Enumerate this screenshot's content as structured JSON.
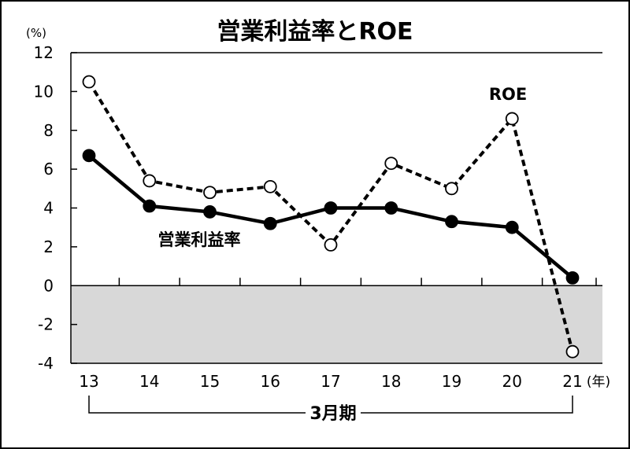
{
  "chart_data": {
    "type": "line",
    "title": "営業利益率とROE",
    "ylabel": "(%)",
    "xlabel_unit": "(年)",
    "xlabel_group": "3月期",
    "categories": [
      "13",
      "14",
      "15",
      "16",
      "17",
      "18",
      "19",
      "20",
      "21"
    ],
    "ylim": [
      -4,
      12
    ],
    "yticks": [
      "12",
      "10",
      "8",
      "6",
      "4",
      "2",
      "0",
      "-2",
      "-4"
    ],
    "negative_region_shaded": true,
    "grid": false,
    "series": [
      {
        "name": "営業利益率",
        "style": "solid",
        "marker": "filled-circle",
        "color": "#000000",
        "values": [
          6.7,
          4.1,
          3.8,
          3.2,
          4.0,
          4.0,
          3.3,
          3.0,
          0.4
        ]
      },
      {
        "name": "ROE",
        "style": "dashed",
        "marker": "open-circle",
        "color": "#000000",
        "values": [
          10.5,
          5.4,
          4.8,
          5.1,
          2.1,
          6.3,
          5.0,
          8.6,
          -3.4
        ]
      }
    ],
    "colors": {
      "border": "#000000",
      "negative_fill": "#d8d8d8",
      "background": "#ffffff"
    }
  }
}
